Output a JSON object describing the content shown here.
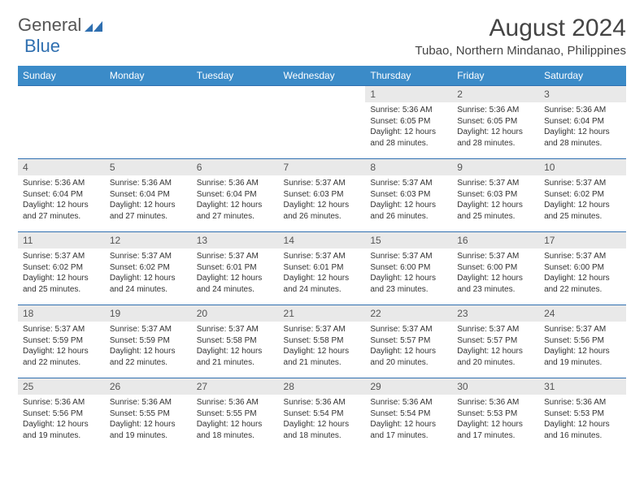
{
  "logo": {
    "part1": "General",
    "part2": "Blue"
  },
  "header": {
    "title": "August 2024",
    "subtitle": "Tubao, Northern Mindanao, Philippines"
  },
  "colors": {
    "header_bg": "#3b8bc8",
    "rule": "#2f6fb0",
    "daynum_bg": "#e9e9e9",
    "text": "#333333"
  },
  "daynames": [
    "Sunday",
    "Monday",
    "Tuesday",
    "Wednesday",
    "Thursday",
    "Friday",
    "Saturday"
  ],
  "weeks": [
    [
      {
        "n": "",
        "lines": []
      },
      {
        "n": "",
        "lines": []
      },
      {
        "n": "",
        "lines": []
      },
      {
        "n": "",
        "lines": []
      },
      {
        "n": "1",
        "lines": [
          "Sunrise: 5:36 AM",
          "Sunset: 6:05 PM",
          "Daylight: 12 hours and 28 minutes."
        ]
      },
      {
        "n": "2",
        "lines": [
          "Sunrise: 5:36 AM",
          "Sunset: 6:05 PM",
          "Daylight: 12 hours and 28 minutes."
        ]
      },
      {
        "n": "3",
        "lines": [
          "Sunrise: 5:36 AM",
          "Sunset: 6:04 PM",
          "Daylight: 12 hours and 28 minutes."
        ]
      }
    ],
    [
      {
        "n": "4",
        "lines": [
          "Sunrise: 5:36 AM",
          "Sunset: 6:04 PM",
          "Daylight: 12 hours and 27 minutes."
        ]
      },
      {
        "n": "5",
        "lines": [
          "Sunrise: 5:36 AM",
          "Sunset: 6:04 PM",
          "Daylight: 12 hours and 27 minutes."
        ]
      },
      {
        "n": "6",
        "lines": [
          "Sunrise: 5:36 AM",
          "Sunset: 6:04 PM",
          "Daylight: 12 hours and 27 minutes."
        ]
      },
      {
        "n": "7",
        "lines": [
          "Sunrise: 5:37 AM",
          "Sunset: 6:03 PM",
          "Daylight: 12 hours and 26 minutes."
        ]
      },
      {
        "n": "8",
        "lines": [
          "Sunrise: 5:37 AM",
          "Sunset: 6:03 PM",
          "Daylight: 12 hours and 26 minutes."
        ]
      },
      {
        "n": "9",
        "lines": [
          "Sunrise: 5:37 AM",
          "Sunset: 6:03 PM",
          "Daylight: 12 hours and 25 minutes."
        ]
      },
      {
        "n": "10",
        "lines": [
          "Sunrise: 5:37 AM",
          "Sunset: 6:02 PM",
          "Daylight: 12 hours and 25 minutes."
        ]
      }
    ],
    [
      {
        "n": "11",
        "lines": [
          "Sunrise: 5:37 AM",
          "Sunset: 6:02 PM",
          "Daylight: 12 hours and 25 minutes."
        ]
      },
      {
        "n": "12",
        "lines": [
          "Sunrise: 5:37 AM",
          "Sunset: 6:02 PM",
          "Daylight: 12 hours and 24 minutes."
        ]
      },
      {
        "n": "13",
        "lines": [
          "Sunrise: 5:37 AM",
          "Sunset: 6:01 PM",
          "Daylight: 12 hours and 24 minutes."
        ]
      },
      {
        "n": "14",
        "lines": [
          "Sunrise: 5:37 AM",
          "Sunset: 6:01 PM",
          "Daylight: 12 hours and 24 minutes."
        ]
      },
      {
        "n": "15",
        "lines": [
          "Sunrise: 5:37 AM",
          "Sunset: 6:00 PM",
          "Daylight: 12 hours and 23 minutes."
        ]
      },
      {
        "n": "16",
        "lines": [
          "Sunrise: 5:37 AM",
          "Sunset: 6:00 PM",
          "Daylight: 12 hours and 23 minutes."
        ]
      },
      {
        "n": "17",
        "lines": [
          "Sunrise: 5:37 AM",
          "Sunset: 6:00 PM",
          "Daylight: 12 hours and 22 minutes."
        ]
      }
    ],
    [
      {
        "n": "18",
        "lines": [
          "Sunrise: 5:37 AM",
          "Sunset: 5:59 PM",
          "Daylight: 12 hours and 22 minutes."
        ]
      },
      {
        "n": "19",
        "lines": [
          "Sunrise: 5:37 AM",
          "Sunset: 5:59 PM",
          "Daylight: 12 hours and 22 minutes."
        ]
      },
      {
        "n": "20",
        "lines": [
          "Sunrise: 5:37 AM",
          "Sunset: 5:58 PM",
          "Daylight: 12 hours and 21 minutes."
        ]
      },
      {
        "n": "21",
        "lines": [
          "Sunrise: 5:37 AM",
          "Sunset: 5:58 PM",
          "Daylight: 12 hours and 21 minutes."
        ]
      },
      {
        "n": "22",
        "lines": [
          "Sunrise: 5:37 AM",
          "Sunset: 5:57 PM",
          "Daylight: 12 hours and 20 minutes."
        ]
      },
      {
        "n": "23",
        "lines": [
          "Sunrise: 5:37 AM",
          "Sunset: 5:57 PM",
          "Daylight: 12 hours and 20 minutes."
        ]
      },
      {
        "n": "24",
        "lines": [
          "Sunrise: 5:37 AM",
          "Sunset: 5:56 PM",
          "Daylight: 12 hours and 19 minutes."
        ]
      }
    ],
    [
      {
        "n": "25",
        "lines": [
          "Sunrise: 5:36 AM",
          "Sunset: 5:56 PM",
          "Daylight: 12 hours and 19 minutes."
        ]
      },
      {
        "n": "26",
        "lines": [
          "Sunrise: 5:36 AM",
          "Sunset: 5:55 PM",
          "Daylight: 12 hours and 19 minutes."
        ]
      },
      {
        "n": "27",
        "lines": [
          "Sunrise: 5:36 AM",
          "Sunset: 5:55 PM",
          "Daylight: 12 hours and 18 minutes."
        ]
      },
      {
        "n": "28",
        "lines": [
          "Sunrise: 5:36 AM",
          "Sunset: 5:54 PM",
          "Daylight: 12 hours and 18 minutes."
        ]
      },
      {
        "n": "29",
        "lines": [
          "Sunrise: 5:36 AM",
          "Sunset: 5:54 PM",
          "Daylight: 12 hours and 17 minutes."
        ]
      },
      {
        "n": "30",
        "lines": [
          "Sunrise: 5:36 AM",
          "Sunset: 5:53 PM",
          "Daylight: 12 hours and 17 minutes."
        ]
      },
      {
        "n": "31",
        "lines": [
          "Sunrise: 5:36 AM",
          "Sunset: 5:53 PM",
          "Daylight: 12 hours and 16 minutes."
        ]
      }
    ]
  ]
}
